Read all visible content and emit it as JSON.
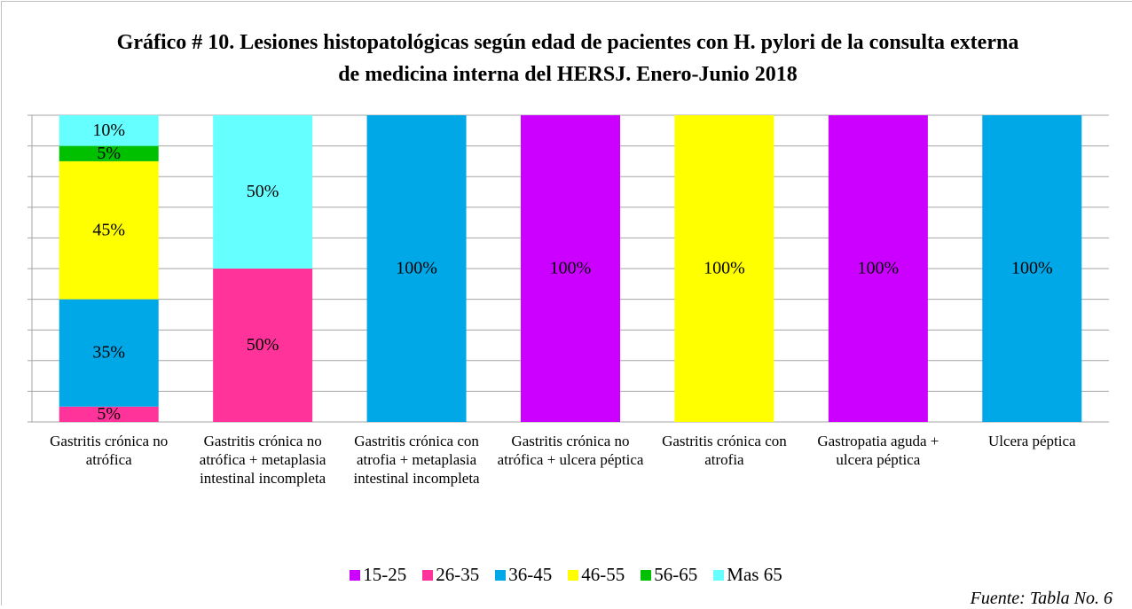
{
  "chart_data": {
    "type": "stacked_bar",
    "title": "Gráfico # 10. Lesiones histopatológicas según edad de pacientes con H. pylori de la consulta externa de medicina interna del HERSJ. Enero-Junio 2018",
    "categories": [
      "Gastritis crónica no atrófica",
      "Gastritis crónica no atrófica + metaplasia intestinal incompleta",
      "Gastritis crónica con atrofia + metaplasia intestinal incompleta",
      "Gastritis crónica no atrófica + ulcera péptica",
      "Gastritis crónica con atrofia",
      "Gastropatia aguda + ulcera péptica",
      "Ulcera péptica"
    ],
    "series": [
      {
        "name": "15-25",
        "color": "#cc00ff",
        "values": [
          null,
          null,
          null,
          100,
          null,
          100,
          null
        ],
        "value_labels": [
          null,
          null,
          null,
          "100%",
          null,
          "100%",
          null
        ]
      },
      {
        "name": "26-35",
        "color": "#ff3399",
        "values": [
          5,
          50,
          null,
          null,
          null,
          null,
          null
        ],
        "value_labels": [
          "5%",
          "50%",
          null,
          null,
          null,
          null,
          null
        ]
      },
      {
        "name": "36-45",
        "color": "#00a8e8",
        "values": [
          35,
          null,
          100,
          null,
          null,
          null,
          100
        ],
        "value_labels": [
          "35%",
          null,
          "100%",
          null,
          null,
          null,
          "100%"
        ]
      },
      {
        "name": "46-55",
        "color": "#ffff00",
        "values": [
          45,
          null,
          null,
          null,
          100,
          null,
          null
        ],
        "value_labels": [
          "45%",
          null,
          null,
          null,
          "100%",
          null,
          null
        ]
      },
      {
        "name": "56-65",
        "color": "#00c000",
        "values": [
          5,
          null,
          null,
          null,
          null,
          null,
          null
        ],
        "value_labels": [
          "5%",
          null,
          null,
          null,
          null,
          null,
          null
        ]
      },
      {
        "name": "Mas 65",
        "color": "#66ffff",
        "values": [
          10,
          50,
          null,
          null,
          null,
          null,
          null
        ],
        "value_labels": [
          "10%",
          "50%",
          null,
          null,
          null,
          null,
          null
        ]
      }
    ],
    "ylim": [
      0,
      100
    ],
    "yticks": [
      0,
      10,
      20,
      30,
      40,
      50,
      60,
      70,
      80,
      90,
      100
    ],
    "grid": true,
    "legend": "bottom",
    "source": "Fuente: Tabla No. 6"
  }
}
